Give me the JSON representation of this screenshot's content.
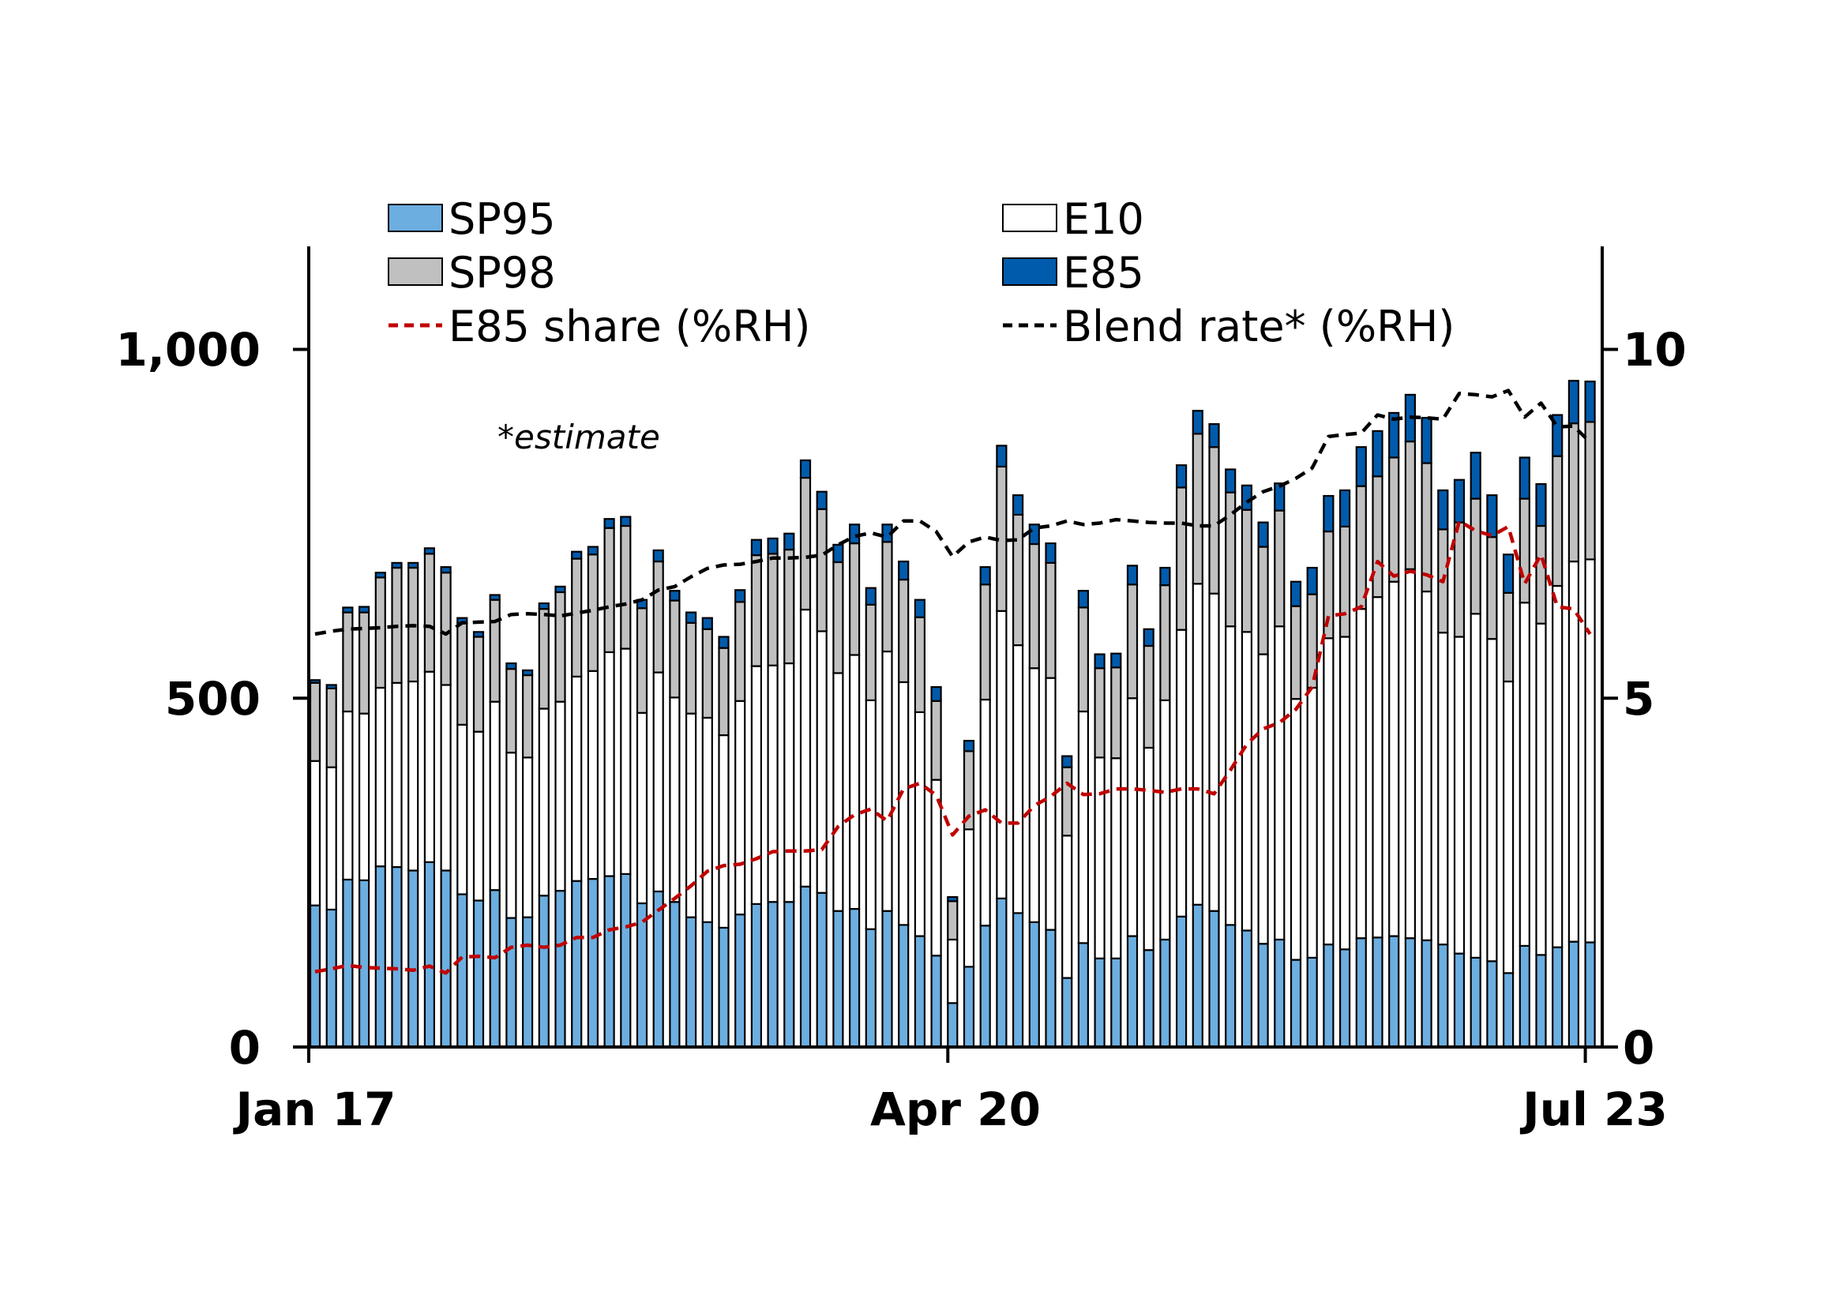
{
  "chart_data": {
    "type": "bar",
    "stacked": true,
    "title": "",
    "xlabel": "",
    "ylabel": "",
    "ylim": [
      0,
      1000
    ],
    "y2lim": [
      0,
      10
    ],
    "y_ticks": [
      "0",
      "500",
      "1,000"
    ],
    "y_tick_values": [
      0,
      500,
      1000
    ],
    "y2_ticks": [
      "0",
      "5",
      "10"
    ],
    "y2_tick_values": [
      0,
      5,
      10
    ],
    "x_ticks": [
      "Jan 17",
      "Apr 20",
      "Jul 23"
    ],
    "x_tick_indices": [
      0,
      39,
      78
    ],
    "note": "*estimate",
    "legend_placement": "top",
    "colors": {
      "SP95": "#6caee0",
      "E10": "#ffffff",
      "SP98": "#c0c0c0",
      "E85": "#005bac",
      "E85 share": "#c00000",
      "Blend rate": "#000000"
    },
    "legend": [
      "SP95",
      "E10",
      "SP98",
      "E85",
      "E85 share (%RH)",
      "Blend rate* (%RH)"
    ],
    "series": [
      {
        "name": "SP95",
        "kind": "bar",
        "values": [
          203,
          197,
          240,
          239,
          259,
          258,
          253,
          265,
          253,
          219,
          210,
          225,
          185,
          186,
          217,
          224,
          238,
          241,
          245,
          248,
          206,
          223,
          208,
          186,
          179,
          171,
          190,
          205,
          208,
          208,
          230,
          221,
          195,
          198,
          169,
          195,
          175,
          159,
          131,
          63,
          115,
          174,
          213,
          192,
          179,
          168,
          99,
          149,
          127,
          127,
          159,
          139,
          154,
          187,
          204,
          195,
          175,
          167,
          148,
          154,
          125,
          128,
          147,
          140,
          156,
          157,
          159,
          156,
          153,
          147,
          134,
          128,
          123,
          106,
          145,
          132,
          143,
          151,
          150
        ]
      },
      {
        "name": "E10",
        "kind": "bar",
        "values": [
          207,
          204,
          241,
          239,
          256,
          264,
          271,
          273,
          266,
          243,
          242,
          270,
          237,
          229,
          268,
          271,
          293,
          298,
          321,
          323,
          273,
          314,
          293,
          292,
          293,
          276,
          306,
          341,
          339,
          342,
          397,
          375,
          341,
          364,
          328,
          372,
          348,
          321,
          252,
          91,
          197,
          324,
          412,
          384,
          364,
          361,
          204,
          332,
          288,
          287,
          341,
          290,
          343,
          411,
          460,
          455,
          428,
          428,
          415,
          449,
          374,
          387,
          439,
          448,
          472,
          488,
          508,
          529,
          500,
          447,
          454,
          493,
          462,
          418,
          492,
          475,
          518,
          545,
          549
        ]
      },
      {
        "name": "SP98",
        "kind": "bar",
        "values": [
          112,
          113,
          142,
          145,
          158,
          165,
          163,
          169,
          161,
          146,
          136,
          146,
          120,
          118,
          143,
          157,
          169,
          167,
          178,
          176,
          150,
          159,
          139,
          130,
          127,
          125,
          142,
          159,
          160,
          163,
          189,
          175,
          159,
          160,
          137,
          157,
          147,
          136,
          113,
          55,
          112,
          165,
          207,
          187,
          178,
          165,
          98,
          149,
          128,
          130,
          163,
          146,
          165,
          204,
          215,
          210,
          192,
          175,
          154,
          166,
          133,
          134,
          153,
          158,
          176,
          173,
          178,
          183,
          184,
          148,
          164,
          165,
          146,
          127,
          149,
          140,
          186,
          198,
          197
        ]
      },
      {
        "name": "E85",
        "kind": "bar",
        "values": [
          4,
          5,
          7,
          8,
          7,
          7,
          7,
          8,
          8,
          7,
          7,
          7,
          8,
          7,
          8,
          8,
          10,
          11,
          13,
          13,
          12,
          16,
          14,
          15,
          16,
          16,
          17,
          22,
          22,
          23,
          25,
          25,
          25,
          27,
          24,
          25,
          26,
          25,
          20,
          6,
          15,
          25,
          30,
          28,
          28,
          28,
          16,
          24,
          20,
          20,
          27,
          24,
          25,
          32,
          33,
          33,
          33,
          35,
          35,
          39,
          35,
          38,
          51,
          52,
          56,
          65,
          64,
          67,
          65,
          56,
          61,
          66,
          60,
          55,
          59,
          60,
          59,
          61,
          58
        ]
      },
      {
        "name": "E85 share (%RH)",
        "kind": "line",
        "axis": "right",
        "values": [
          1.08,
          1.12,
          1.17,
          1.14,
          1.13,
          1.12,
          1.1,
          1.16,
          1.06,
          1.29,
          1.3,
          1.28,
          1.43,
          1.46,
          1.43,
          1.46,
          1.57,
          1.57,
          1.68,
          1.72,
          1.79,
          1.96,
          2.13,
          2.31,
          2.52,
          2.6,
          2.62,
          2.7,
          2.8,
          2.81,
          2.81,
          2.83,
          3.16,
          3.33,
          3.41,
          3.24,
          3.7,
          3.78,
          3.61,
          3.04,
          3.31,
          3.4,
          3.21,
          3.21,
          3.46,
          3.59,
          3.78,
          3.62,
          3.63,
          3.7,
          3.7,
          3.68,
          3.65,
          3.7,
          3.7,
          3.63,
          3.97,
          4.34,
          4.56,
          4.65,
          4.84,
          5.16,
          6.18,
          6.21,
          6.31,
          6.96,
          6.75,
          6.82,
          6.77,
          6.67,
          7.54,
          7.4,
          7.33,
          7.46,
          6.64,
          7.06,
          6.31,
          6.28,
          5.92
        ]
      },
      {
        "name": "Blend rate* (%RH)",
        "kind": "line",
        "axis": "right",
        "values": [
          5.92,
          5.96,
          5.99,
          6.0,
          6.01,
          6.03,
          6.04,
          6.03,
          5.92,
          6.08,
          6.09,
          6.1,
          6.2,
          6.21,
          6.2,
          6.18,
          6.22,
          6.26,
          6.31,
          6.35,
          6.41,
          6.55,
          6.6,
          6.74,
          6.86,
          6.91,
          6.92,
          6.96,
          7.01,
          7.01,
          7.02,
          7.05,
          7.2,
          7.32,
          7.37,
          7.31,
          7.54,
          7.54,
          7.39,
          7.03,
          7.24,
          7.31,
          7.26,
          7.27,
          7.44,
          7.47,
          7.54,
          7.49,
          7.51,
          7.56,
          7.54,
          7.52,
          7.51,
          7.51,
          7.47,
          7.47,
          7.63,
          7.81,
          7.96,
          8.04,
          8.15,
          8.3,
          8.75,
          8.78,
          8.8,
          9.06,
          9.0,
          9.03,
          9.02,
          9.0,
          9.37,
          9.35,
          9.32,
          9.41,
          9.03,
          9.23,
          8.89,
          8.9,
          8.67
        ]
      }
    ]
  }
}
